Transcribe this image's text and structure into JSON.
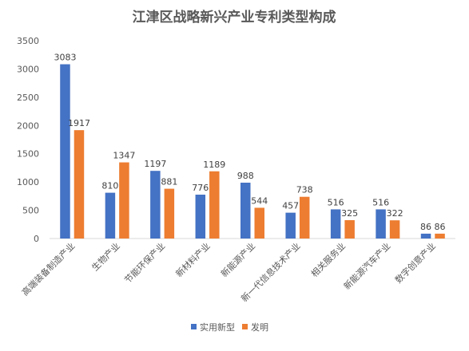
{
  "chart_data": {
    "type": "bar",
    "title": "江津区战略新兴产业专利类型构成",
    "categories": [
      "高端装备制造产业",
      "生物产业",
      "节能环保产业",
      "新材料产业",
      "新能源产业",
      "新一代信息技术产业",
      "相关服务业",
      "新能源汽车产业",
      "数字创意产业"
    ],
    "series": [
      {
        "name": "实用新型",
        "values": [
          3083,
          810,
          1197,
          776,
          988,
          457,
          516,
          516,
          86
        ],
        "color": "#4472C4"
      },
      {
        "name": "发明",
        "values": [
          1917,
          1347,
          881,
          1189,
          544,
          738,
          325,
          322,
          86
        ],
        "color": "#ED7D31"
      }
    ],
    "ylim": [
      0,
      3500
    ],
    "yticks": [
      0,
      500,
      1000,
      1500,
      2000,
      2500,
      3000,
      3500
    ],
    "grid": false,
    "legend_position": "bottom",
    "xlabel": "",
    "ylabel": ""
  }
}
